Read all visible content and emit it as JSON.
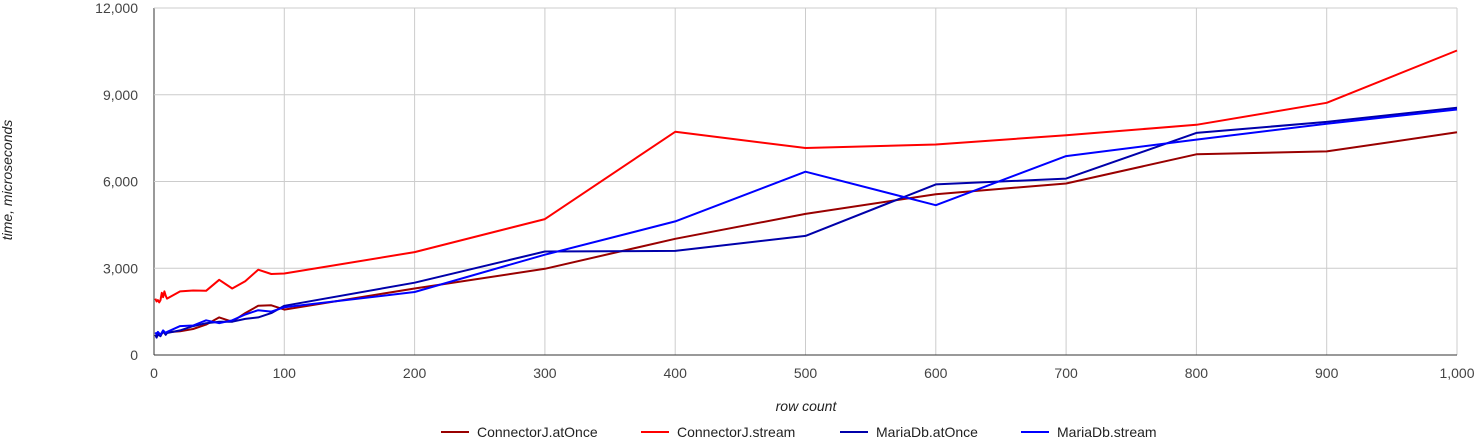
{
  "chart_data": {
    "type": "line",
    "title": "",
    "xlabel": "row count",
    "ylabel": "time, microseconds",
    "xlim": [
      0,
      1000
    ],
    "ylim": [
      0,
      12000
    ],
    "x_ticks": [
      0,
      100,
      200,
      300,
      400,
      500,
      600,
      700,
      800,
      900,
      1000
    ],
    "x_tick_labels": [
      "0",
      "100",
      "200",
      "300",
      "400",
      "500",
      "600",
      "700",
      "800",
      "900",
      "1,000"
    ],
    "y_ticks": [
      0,
      3000,
      6000,
      9000,
      12000
    ],
    "y_tick_labels": [
      "0",
      "3,000",
      "6,000",
      "9,000",
      "12,000"
    ],
    "grid": true,
    "legend_position": "bottom",
    "series": [
      {
        "name": "ConnectorJ.atOnce",
        "color": "#990000",
        "points": [
          [
            1,
            650
          ],
          [
            2,
            700
          ],
          [
            3,
            680
          ],
          [
            5,
            720
          ],
          [
            7,
            780
          ],
          [
            9,
            760
          ],
          [
            10,
            790
          ],
          [
            20,
            820
          ],
          [
            30,
            900
          ],
          [
            40,
            1050
          ],
          [
            50,
            1300
          ],
          [
            60,
            1150
          ],
          [
            70,
            1450
          ],
          [
            80,
            1700
          ],
          [
            90,
            1720
          ],
          [
            100,
            1570
          ],
          [
            200,
            2300
          ],
          [
            300,
            2980
          ],
          [
            400,
            4020
          ],
          [
            500,
            4880
          ],
          [
            600,
            5560
          ],
          [
            700,
            5930
          ],
          [
            800,
            6940
          ],
          [
            900,
            7040
          ],
          [
            1000,
            7700
          ]
        ]
      },
      {
        "name": "ConnectorJ.stream",
        "color": "#ff0000",
        "points": [
          [
            1,
            1950
          ],
          [
            2,
            1850
          ],
          [
            3,
            1900
          ],
          [
            4,
            1820
          ],
          [
            5,
            1900
          ],
          [
            6,
            2150
          ],
          [
            7,
            2000
          ],
          [
            8,
            2200
          ],
          [
            9,
            2050
          ],
          [
            10,
            1950
          ],
          [
            20,
            2200
          ],
          [
            30,
            2230
          ],
          [
            40,
            2220
          ],
          [
            50,
            2600
          ],
          [
            60,
            2300
          ],
          [
            70,
            2550
          ],
          [
            80,
            2950
          ],
          [
            90,
            2800
          ],
          [
            100,
            2820
          ],
          [
            200,
            3560
          ],
          [
            300,
            4700
          ],
          [
            400,
            7720
          ],
          [
            500,
            7160
          ],
          [
            600,
            7280
          ],
          [
            700,
            7600
          ],
          [
            800,
            7960
          ],
          [
            900,
            8720
          ],
          [
            1000,
            10530
          ]
        ]
      },
      {
        "name": "MariaDb.atOnce",
        "color": "#0000aa",
        "points": [
          [
            1,
            700
          ],
          [
            2,
            600
          ],
          [
            3,
            720
          ],
          [
            5,
            650
          ],
          [
            7,
            820
          ],
          [
            9,
            700
          ],
          [
            10,
            760
          ],
          [
            20,
            850
          ],
          [
            30,
            1000
          ],
          [
            40,
            1100
          ],
          [
            50,
            1150
          ],
          [
            60,
            1150
          ],
          [
            70,
            1250
          ],
          [
            80,
            1300
          ],
          [
            90,
            1450
          ],
          [
            100,
            1700
          ],
          [
            200,
            2500
          ],
          [
            300,
            3580
          ],
          [
            400,
            3600
          ],
          [
            500,
            4120
          ],
          [
            600,
            5900
          ],
          [
            700,
            6100
          ],
          [
            800,
            7680
          ],
          [
            900,
            8060
          ],
          [
            1000,
            8550
          ]
        ]
      },
      {
        "name": "MariaDb.stream",
        "color": "#0000ff",
        "points": [
          [
            1,
            780
          ],
          [
            2,
            720
          ],
          [
            3,
            800
          ],
          [
            5,
            700
          ],
          [
            7,
            850
          ],
          [
            9,
            760
          ],
          [
            10,
            800
          ],
          [
            20,
            1000
          ],
          [
            30,
            1020
          ],
          [
            40,
            1200
          ],
          [
            50,
            1100
          ],
          [
            60,
            1200
          ],
          [
            70,
            1400
          ],
          [
            80,
            1550
          ],
          [
            90,
            1500
          ],
          [
            100,
            1650
          ],
          [
            200,
            2180
          ],
          [
            300,
            3470
          ],
          [
            400,
            4620
          ],
          [
            500,
            6340
          ],
          [
            600,
            5180
          ],
          [
            700,
            6880
          ],
          [
            800,
            7450
          ],
          [
            900,
            8000
          ],
          [
            1000,
            8490
          ]
        ]
      }
    ]
  }
}
